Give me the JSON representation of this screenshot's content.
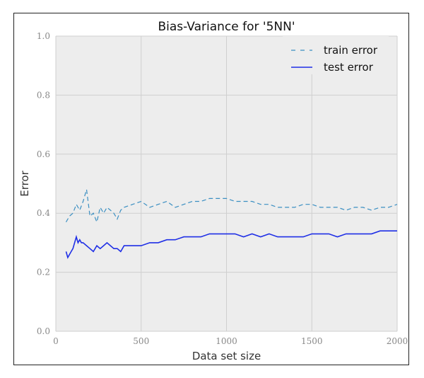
{
  "chart_data": {
    "type": "line",
    "title": "Bias-Variance for '5NN'",
    "xlabel": "Data set size",
    "ylabel": "Error",
    "xlim": [
      0,
      2000
    ],
    "ylim": [
      0.0,
      1.0
    ],
    "x_ticks": [
      "0",
      "500",
      "1000",
      "1500",
      "2000"
    ],
    "y_ticks": [
      "0.0",
      "0.2",
      "0.4",
      "0.6",
      "0.8",
      "1.0"
    ],
    "grid": true,
    "legend_position": "top-right",
    "series": [
      {
        "name": "train error",
        "style": "dashed",
        "color": "#3b8fc2",
        "x": [
          60,
          80,
          100,
          120,
          140,
          160,
          180,
          200,
          220,
          240,
          260,
          280,
          300,
          320,
          340,
          360,
          380,
          400,
          450,
          500,
          550,
          600,
          650,
          700,
          750,
          800,
          850,
          900,
          950,
          1000,
          1050,
          1100,
          1150,
          1200,
          1250,
          1300,
          1350,
          1400,
          1450,
          1500,
          1550,
          1600,
          1650,
          1700,
          1750,
          1800,
          1850,
          1900,
          1950,
          2000
        ],
        "values": [
          0.37,
          0.39,
          0.4,
          0.43,
          0.41,
          0.44,
          0.48,
          0.39,
          0.4,
          0.37,
          0.42,
          0.4,
          0.42,
          0.41,
          0.4,
          0.38,
          0.41,
          0.42,
          0.43,
          0.44,
          0.42,
          0.43,
          0.44,
          0.42,
          0.43,
          0.44,
          0.44,
          0.45,
          0.45,
          0.45,
          0.44,
          0.44,
          0.44,
          0.43,
          0.43,
          0.42,
          0.42,
          0.42,
          0.43,
          0.43,
          0.42,
          0.42,
          0.42,
          0.41,
          0.42,
          0.42,
          0.41,
          0.42,
          0.42,
          0.43
        ]
      },
      {
        "name": "test error",
        "style": "solid",
        "color": "#1f2fe6",
        "x": [
          60,
          70,
          80,
          90,
          100,
          110,
          120,
          130,
          140,
          150,
          160,
          180,
          200,
          220,
          240,
          260,
          280,
          300,
          320,
          340,
          360,
          380,
          400,
          450,
          500,
          550,
          600,
          650,
          700,
          750,
          800,
          850,
          900,
          950,
          1000,
          1050,
          1100,
          1150,
          1200,
          1250,
          1300,
          1350,
          1400,
          1450,
          1500,
          1550,
          1600,
          1650,
          1700,
          1750,
          1800,
          1850,
          1900,
          1950,
          2000
        ],
        "values": [
          0.27,
          0.25,
          0.26,
          0.27,
          0.28,
          0.3,
          0.32,
          0.3,
          0.31,
          0.3,
          0.3,
          0.29,
          0.28,
          0.27,
          0.29,
          0.28,
          0.29,
          0.3,
          0.29,
          0.28,
          0.28,
          0.27,
          0.29,
          0.29,
          0.29,
          0.3,
          0.3,
          0.31,
          0.31,
          0.32,
          0.32,
          0.32,
          0.33,
          0.33,
          0.33,
          0.33,
          0.32,
          0.33,
          0.32,
          0.33,
          0.32,
          0.32,
          0.32,
          0.32,
          0.33,
          0.33,
          0.33,
          0.32,
          0.33,
          0.33,
          0.33,
          0.33,
          0.34,
          0.34,
          0.34
        ]
      }
    ]
  }
}
